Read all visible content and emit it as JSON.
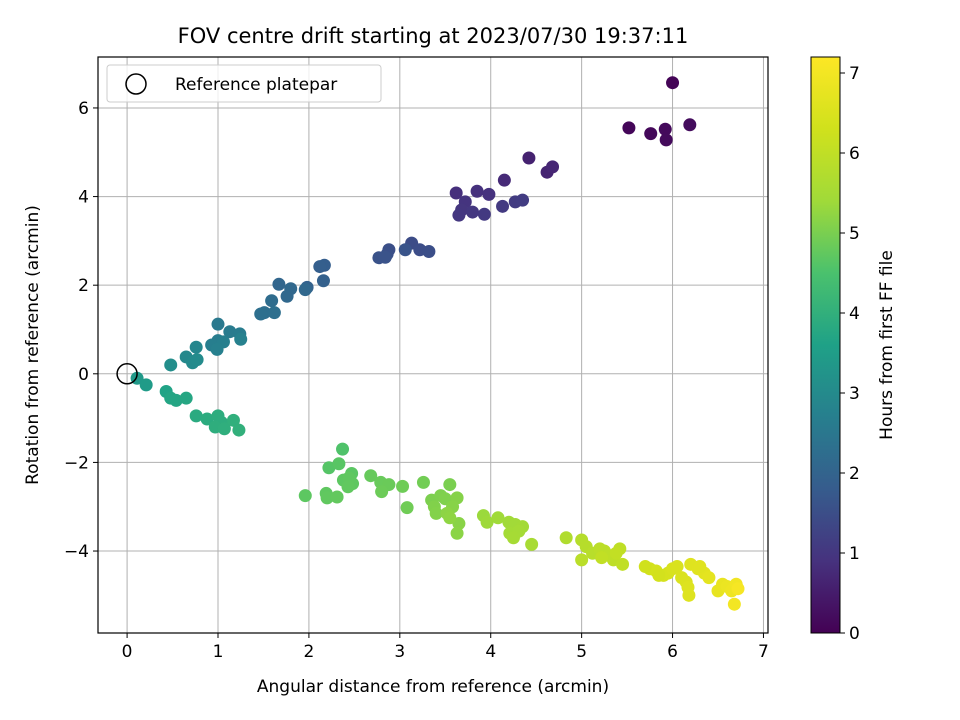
{
  "chart_data": {
    "type": "scatter",
    "title": "FOV centre drift starting at 2023/07/30 19:37:11",
    "xlabel": "Angular distance from reference (arcmin)",
    "ylabel": "Rotation from reference (arcmin)",
    "xlim": [
      -0.32,
      7.05
    ],
    "ylim": [
      -5.85,
      7.15
    ],
    "xticks": [
      0,
      1,
      2,
      3,
      4,
      5,
      6,
      7
    ],
    "yticks": [
      -4,
      -2,
      0,
      2,
      4,
      6
    ],
    "grid": true,
    "legend": {
      "position": "top-left",
      "label": "Reference platepar"
    },
    "reference_point": {
      "x": 0,
      "y": 0
    },
    "colorbar": {
      "label": "Hours from first FF file",
      "min": 0,
      "max": 7.2,
      "ticks": [
        0,
        1,
        2,
        3,
        4,
        5,
        6,
        7
      ],
      "colormap": "viridis"
    },
    "points": [
      [
        6.0,
        6.57,
        0.05
      ],
      [
        5.52,
        5.55,
        0.1
      ],
      [
        5.76,
        5.42,
        0.12
      ],
      [
        5.92,
        5.52,
        0.14
      ],
      [
        5.93,
        5.28,
        0.16
      ],
      [
        6.19,
        5.62,
        0.2
      ],
      [
        4.42,
        4.87,
        0.6
      ],
      [
        4.62,
        4.55,
        0.65
      ],
      [
        4.68,
        4.67,
        0.68
      ],
      [
        4.15,
        4.37,
        0.75
      ],
      [
        3.62,
        4.08,
        0.85
      ],
      [
        3.85,
        4.12,
        0.88
      ],
      [
        3.98,
        4.05,
        0.9
      ],
      [
        3.72,
        3.88,
        0.95
      ],
      [
        3.68,
        3.7,
        0.98
      ],
      [
        3.65,
        3.58,
        1.0
      ],
      [
        3.8,
        3.65,
        1.02
      ],
      [
        3.93,
        3.6,
        1.05
      ],
      [
        4.13,
        3.78,
        1.08
      ],
      [
        4.27,
        3.88,
        1.1
      ],
      [
        4.35,
        3.92,
        1.12
      ],
      [
        3.13,
        2.95,
        1.45
      ],
      [
        3.22,
        2.8,
        1.48
      ],
      [
        3.32,
        2.76,
        1.5
      ],
      [
        2.88,
        2.8,
        1.52
      ],
      [
        2.86,
        2.7,
        1.55
      ],
      [
        2.77,
        2.62,
        1.58
      ],
      [
        2.84,
        2.63,
        1.6
      ],
      [
        3.06,
        2.8,
        1.62
      ],
      [
        2.17,
        2.45,
        1.85
      ],
      [
        2.12,
        2.42,
        1.88
      ],
      [
        2.16,
        2.1,
        1.92
      ],
      [
        1.98,
        1.95,
        1.95
      ],
      [
        1.67,
        2.02,
        2.05
      ],
      [
        1.8,
        1.92,
        2.1
      ],
      [
        1.76,
        1.75,
        2.12
      ],
      [
        1.96,
        1.9,
        2.1
      ],
      [
        1.59,
        1.65,
        2.22
      ],
      [
        1.51,
        1.38,
        2.25
      ],
      [
        1.62,
        1.38,
        2.28
      ],
      [
        1.47,
        1.35,
        2.3
      ],
      [
        1.0,
        1.12,
        2.55
      ],
      [
        1.13,
        0.95,
        2.6
      ],
      [
        1.24,
        0.9,
        2.62
      ],
      [
        1.0,
        0.75,
        2.65
      ],
      [
        0.93,
        0.65,
        2.68
      ],
      [
        1.06,
        0.72,
        2.7
      ],
      [
        0.99,
        0.55,
        2.72
      ],
      [
        1.25,
        0.78,
        2.75
      ],
      [
        0.76,
        0.6,
        2.88
      ],
      [
        0.65,
        0.38,
        2.95
      ],
      [
        0.72,
        0.25,
        3.0
      ],
      [
        0.77,
        0.32,
        3.02
      ],
      [
        0.48,
        0.2,
        3.1
      ],
      [
        0.11,
        -0.1,
        3.4
      ],
      [
        0.21,
        -0.25,
        3.45
      ],
      [
        0.43,
        -0.4,
        3.65
      ],
      [
        0.48,
        -0.55,
        3.7
      ],
      [
        0.54,
        -0.6,
        3.72
      ],
      [
        0.65,
        -0.55,
        3.75
      ],
      [
        0.76,
        -0.95,
        3.85
      ],
      [
        0.88,
        -1.02,
        3.88
      ],
      [
        1.0,
        -0.95,
        3.9
      ],
      [
        1.04,
        -1.1,
        3.92
      ],
      [
        0.97,
        -1.2,
        3.94
      ],
      [
        1.07,
        -1.24,
        3.96
      ],
      [
        1.17,
        -1.05,
        3.98
      ],
      [
        1.23,
        -1.27,
        4.0
      ],
      [
        2.37,
        -1.7,
        4.55
      ],
      [
        2.22,
        -2.12,
        4.62
      ],
      [
        2.33,
        -2.03,
        4.65
      ],
      [
        2.47,
        -2.25,
        4.68
      ],
      [
        2.38,
        -2.4,
        4.7
      ],
      [
        2.48,
        -2.48,
        4.72
      ],
      [
        2.44,
        -2.35,
        4.73
      ],
      [
        2.43,
        -2.55,
        4.74
      ],
      [
        1.96,
        -2.75,
        4.7
      ],
      [
        2.19,
        -2.7,
        4.72
      ],
      [
        2.2,
        -2.8,
        4.74
      ],
      [
        2.31,
        -2.78,
        4.76
      ],
      [
        2.68,
        -2.3,
        4.8
      ],
      [
        2.79,
        -2.45,
        4.82
      ],
      [
        2.88,
        -2.5,
        4.84
      ],
      [
        2.8,
        -2.66,
        4.86
      ],
      [
        3.03,
        -2.54,
        4.88
      ],
      [
        3.08,
        -3.02,
        4.9
      ],
      [
        3.26,
        -2.45,
        4.92
      ],
      [
        3.55,
        -2.5,
        5.0
      ],
      [
        3.35,
        -2.85,
        5.02
      ],
      [
        3.45,
        -2.75,
        5.04
      ],
      [
        3.5,
        -2.82,
        5.06
      ],
      [
        3.38,
        -3.0,
        5.08
      ],
      [
        3.4,
        -3.15,
        5.1
      ],
      [
        3.63,
        -2.8,
        5.12
      ],
      [
        3.58,
        -3.0,
        5.14
      ],
      [
        3.65,
        -3.38,
        5.16
      ],
      [
        3.63,
        -3.6,
        5.18
      ],
      [
        3.52,
        -3.15,
        5.2
      ],
      [
        3.55,
        -3.25,
        5.22
      ],
      [
        3.92,
        -3.2,
        5.35
      ],
      [
        3.96,
        -3.35,
        5.38
      ],
      [
        4.08,
        -3.25,
        5.4
      ],
      [
        4.2,
        -3.35,
        5.42
      ],
      [
        4.27,
        -3.4,
        5.44
      ],
      [
        4.35,
        -3.45,
        5.46
      ],
      [
        4.21,
        -3.6,
        5.48
      ],
      [
        4.31,
        -3.55,
        5.5
      ],
      [
        4.25,
        -3.7,
        5.52
      ],
      [
        4.45,
        -3.85,
        5.55
      ],
      [
        4.83,
        -3.7,
        5.7
      ],
      [
        5.0,
        -3.75,
        5.8
      ],
      [
        5.05,
        -3.9,
        5.82
      ],
      [
        5.12,
        -4.05,
        5.85
      ],
      [
        5.0,
        -4.2,
        5.88
      ],
      [
        5.2,
        -3.95,
        5.9
      ],
      [
        5.25,
        -4.0,
        5.92
      ],
      [
        5.3,
        -4.1,
        5.94
      ],
      [
        5.35,
        -4.2,
        5.96
      ],
      [
        5.42,
        -3.95,
        5.98
      ],
      [
        5.45,
        -4.3,
        6.0
      ],
      [
        5.22,
        -4.15,
        6.02
      ],
      [
        5.38,
        -4.05,
        6.04
      ],
      [
        5.75,
        -4.4,
        6.35
      ],
      [
        5.82,
        -4.45,
        6.38
      ],
      [
        5.9,
        -4.55,
        6.4
      ],
      [
        5.95,
        -4.5,
        6.42
      ],
      [
        6.0,
        -4.4,
        6.45
      ],
      [
        6.05,
        -4.35,
        6.48
      ],
      [
        6.1,
        -4.6,
        6.5
      ],
      [
        6.15,
        -4.7,
        6.52
      ],
      [
        6.17,
        -4.82,
        6.55
      ],
      [
        6.18,
        -5.0,
        6.58
      ],
      [
        6.2,
        -4.3,
        6.6
      ],
      [
        6.28,
        -4.4,
        6.62
      ],
      [
        6.35,
        -4.5,
        6.65
      ],
      [
        6.4,
        -4.6,
        6.7
      ],
      [
        6.5,
        -4.9,
        6.75
      ],
      [
        6.55,
        -4.75,
        6.8
      ],
      [
        6.6,
        -4.8,
        6.85
      ],
      [
        6.65,
        -4.9,
        6.9
      ],
      [
        6.7,
        -4.75,
        6.95
      ],
      [
        6.68,
        -5.2,
        7.0
      ],
      [
        6.72,
        -4.85,
        7.05
      ],
      [
        6.3,
        -4.35,
        6.62
      ],
      [
        5.7,
        -4.35,
        6.3
      ],
      [
        5.85,
        -4.55,
        6.36
      ]
    ]
  }
}
